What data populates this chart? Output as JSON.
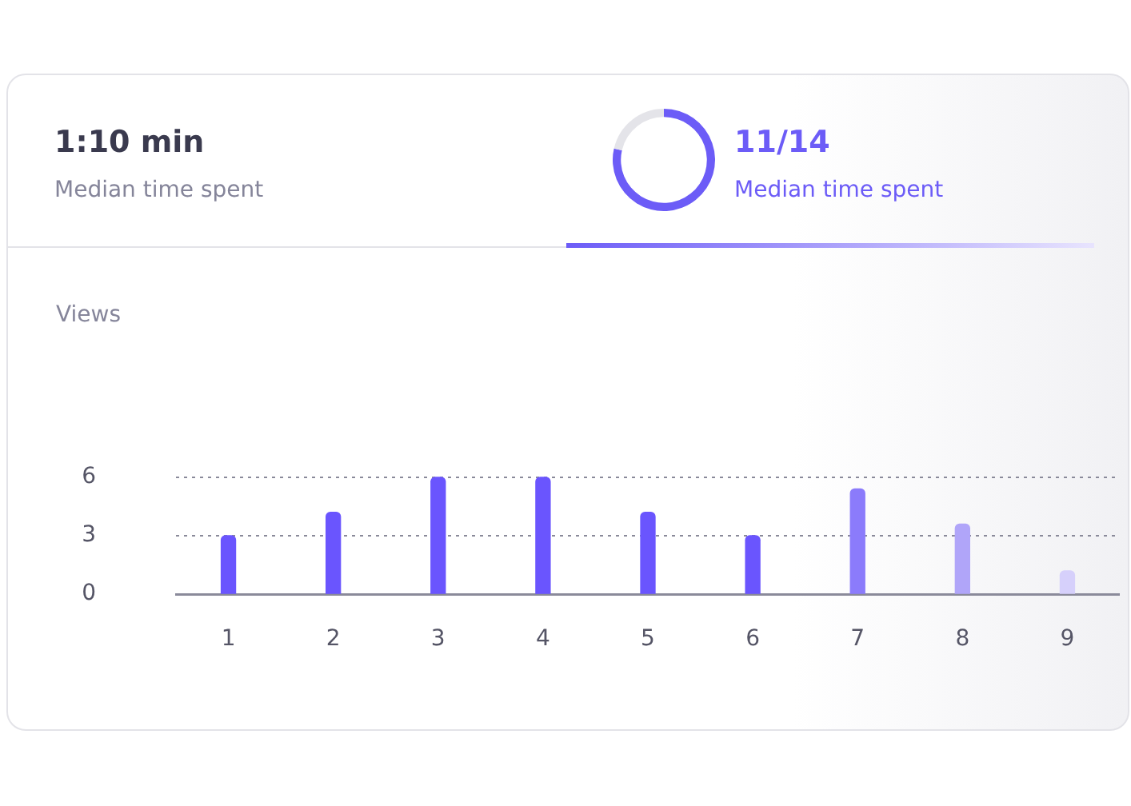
{
  "chart_data": [
    {
      "type": "other",
      "title": "1:10 min",
      "subtitle": "Median time spent"
    },
    {
      "type": "donut",
      "title": "11/14",
      "subtitle": "Median time spent",
      "categories": [
        null,
        null
      ],
      "values": [
        78.6,
        21.4
      ],
      "colors": [
        "#6c5cf7",
        "#e4e4e9"
      ],
      "legend": false
    },
    {
      "type": "bar",
      "ylabel": "Views",
      "categories": [
        "1",
        "2",
        "3",
        "4",
        "5",
        "6",
        "7",
        "8",
        "9"
      ],
      "values": [
        3,
        4.2,
        6,
        6,
        4.2,
        3,
        5.4,
        3.6,
        1.2
      ],
      "colors": [
        "#6a55fe",
        "#6a55fe",
        "#6a55fe",
        "#6a55fe",
        "#6a55fe",
        "#6a55fe",
        "#8b7bfb",
        "#b0a5f9",
        "#d6d0fb"
      ],
      "ylim": [
        0,
        6
      ],
      "yticks": [
        0,
        3,
        6
      ],
      "grid": "y",
      "legend": false
    }
  ]
}
